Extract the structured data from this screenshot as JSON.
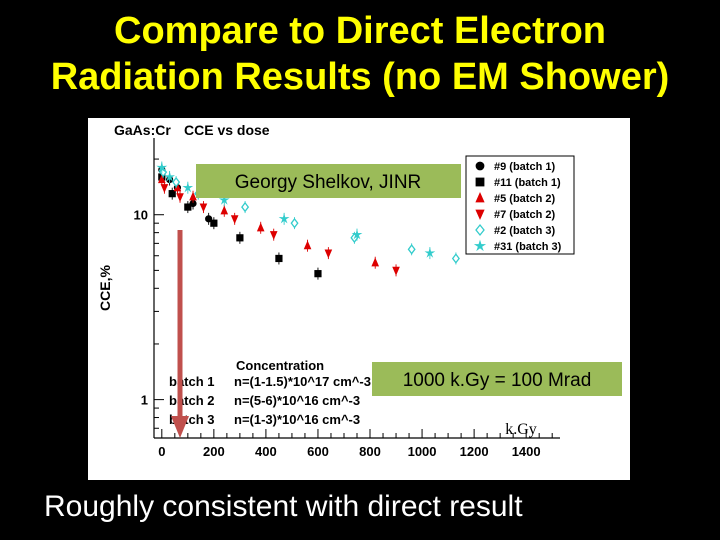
{
  "slide": {
    "title_line1": "Compare to Direct Electron",
    "title_line2": "Radiation Results (no EM Shower)",
    "bottom_caption": "Roughly consistent with direct result"
  },
  "colors": {
    "background": "#000000",
    "title": "#ffff00",
    "callout_fill": "#9bbb59",
    "arrow": "#c0504d",
    "batch1": "#000000",
    "batch2": "#dd0000",
    "batch3": "#33cccc"
  },
  "chart_data": {
    "type": "scatter",
    "title_left": "GaAs:Cr",
    "title_right": "CCE vs dose",
    "ylabel": "CCE,%",
    "xlabel": "",
    "x_scale": "linear",
    "y_scale": "log",
    "xlim": [
      -30,
      1530
    ],
    "ylim": [
      0.62,
      26
    ],
    "x_ticks": [
      "0",
      "200",
      "400",
      "600",
      "800",
      "1000",
      "1200",
      "1400"
    ],
    "y_ticks": [
      "1",
      "10"
    ],
    "grid": false,
    "legend_position": "top-right",
    "series": [
      {
        "name": "#9  (batch 1)",
        "marker": "circle",
        "color": "#000000",
        "x": [
          0,
          30,
          60,
          120,
          180
        ],
        "y": [
          17.5,
          15.5,
          14,
          11.5,
          9.5
        ]
      },
      {
        "name": "#11 (batch 1)",
        "marker": "square",
        "color": "#000000",
        "x": [
          0,
          40,
          100,
          200,
          300,
          450,
          600
        ],
        "y": [
          16,
          13,
          11,
          9,
          7.5,
          5.8,
          4.8
        ]
      },
      {
        "name": "#5  (batch 2)",
        "marker": "triangle",
        "color": "#dd0000",
        "x": [
          0,
          60,
          120,
          240,
          380,
          560,
          820
        ],
        "y": [
          15.5,
          14,
          12.5,
          10.5,
          8.5,
          6.8,
          5.5
        ]
      },
      {
        "name": "#7  (batch 2)",
        "marker": "triangle-down",
        "color": "#dd0000",
        "x": [
          10,
          70,
          160,
          280,
          430,
          640,
          900
        ],
        "y": [
          14,
          12.5,
          11,
          9.5,
          7.8,
          6.2,
          5
        ]
      },
      {
        "name": "#2  (batch 3)",
        "marker": "diamond",
        "color": "#33cccc",
        "x": [
          5,
          55,
          140,
          320,
          510,
          740,
          960,
          1130
        ],
        "y": [
          17,
          15,
          13,
          11,
          9,
          7.5,
          6.5,
          5.8
        ]
      },
      {
        "name": "#31 (batch 3)",
        "marker": "star",
        "color": "#33cccc",
        "x": [
          0,
          30,
          100,
          240,
          470,
          750,
          1030
        ],
        "y": [
          18,
          16,
          14,
          12,
          9.5,
          7.8,
          6.2
        ]
      }
    ],
    "legend_box": {
      "heading": "Concentration",
      "rows": [
        {
          "batch": "batch 1",
          "value": "n=(1-1.5)*10^17 cm^-3"
        },
        {
          "batch": "batch 2",
          "value": "n=(5-6)*10^16 cm^-3"
        },
        {
          "batch": "batch 3",
          "value": "n=(1-3)*10^16 cm^-3"
        }
      ]
    },
    "annotations": {
      "author": "Georgy Shelkov, JINR",
      "conversion": "1000 k.Gy = 100 Mrad",
      "x_unit": "k.Gy"
    }
  }
}
